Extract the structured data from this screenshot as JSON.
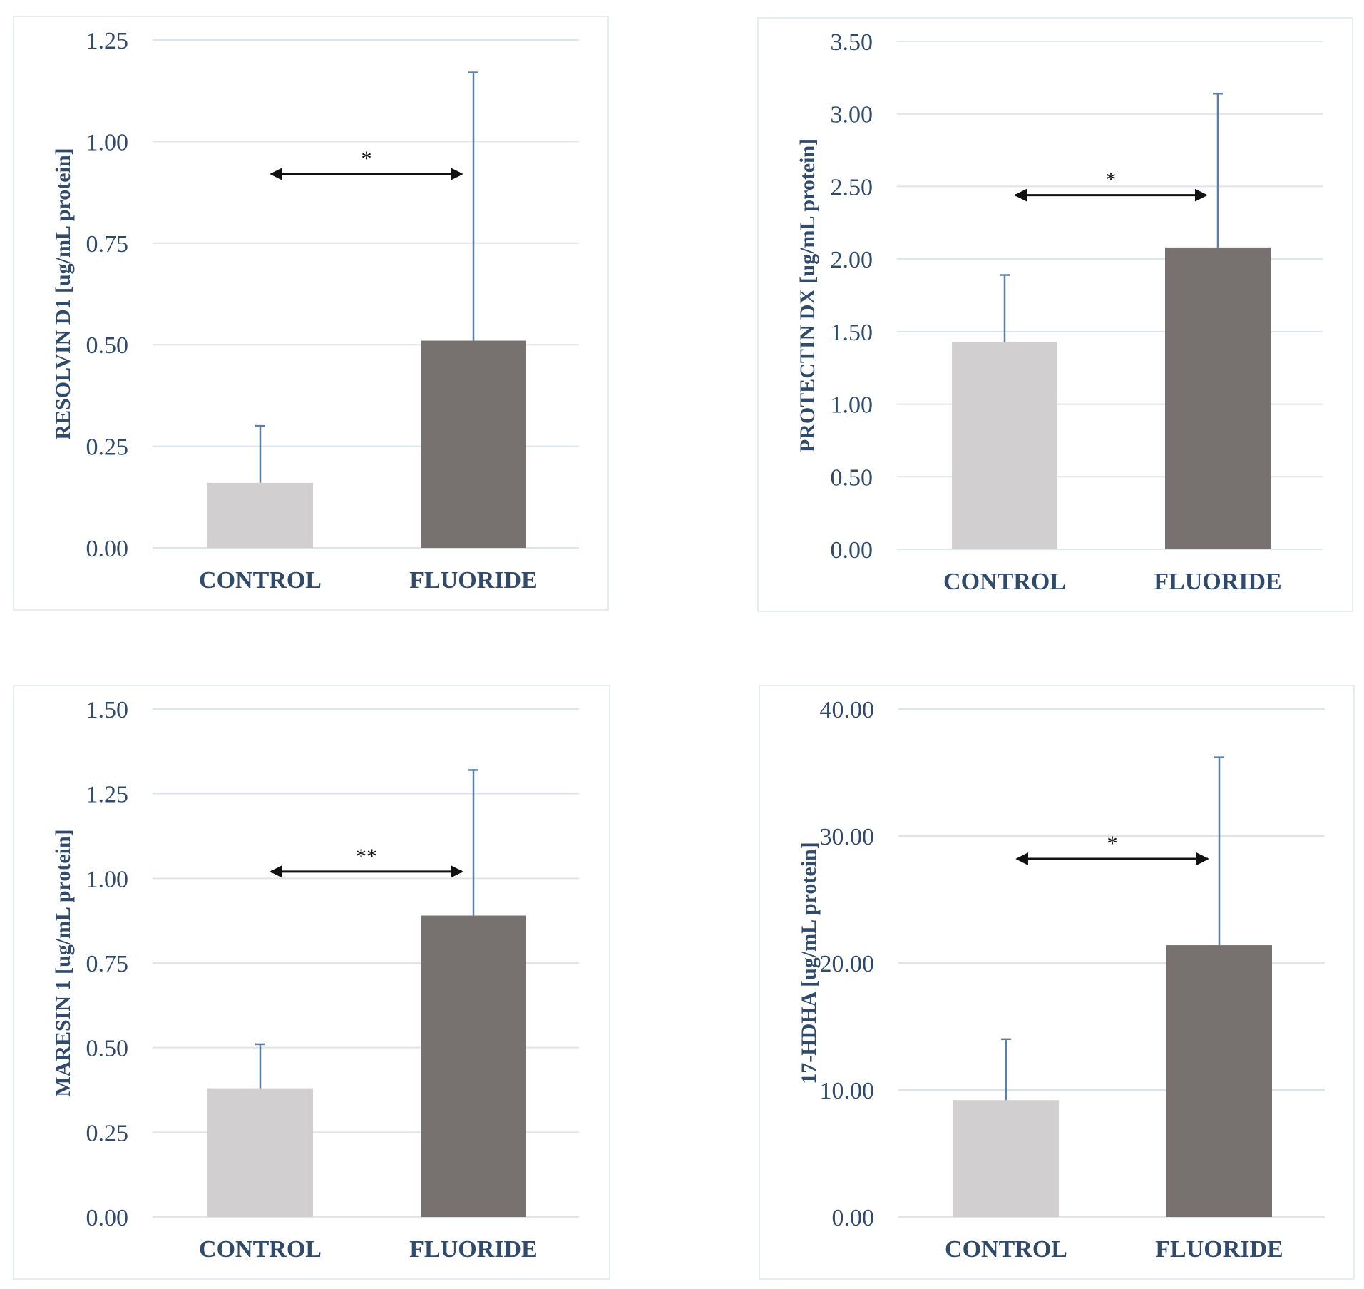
{
  "colors": {
    "control": "#d1cfcf",
    "fluoride": "#77716f",
    "text": "#2f4a6b",
    "error": "#5b7fa6",
    "grid": "#dde4ea"
  },
  "chart_data": [
    {
      "type": "bar",
      "categories": [
        "CONTROL",
        "FLUORIDE"
      ],
      "values": [
        0.16,
        0.51
      ],
      "error_upper": [
        0.3,
        1.17
      ],
      "ylabel": "RESOLVIN D1 [ug/mL protein]",
      "ylim": [
        0,
        1.25
      ],
      "ytick_labels": [
        "0.00",
        "0.25",
        "0.50",
        "0.75",
        "1.00",
        "1.25"
      ],
      "significance": "*"
    },
    {
      "type": "bar",
      "categories": [
        "CONTROL",
        "FLUORIDE"
      ],
      "values": [
        1.43,
        2.08
      ],
      "error_upper": [
        1.89,
        3.14
      ],
      "ylabel": "PROTECTIN DX [ug/mL protein]",
      "ylim": [
        0,
        3.5
      ],
      "ytick_labels": [
        "0.00",
        "0.50",
        "1.00",
        "1.50",
        "2.00",
        "2.50",
        "3.00",
        "3.50"
      ],
      "significance": "*"
    },
    {
      "type": "bar",
      "categories": [
        "CONTROL",
        "FLUORIDE"
      ],
      "values": [
        0.38,
        0.89
      ],
      "error_upper": [
        0.51,
        1.32
      ],
      "ylabel": "MARESIN 1 [ug/mL protein]",
      "ylim": [
        0,
        1.5
      ],
      "ytick_labels": [
        "0.00",
        "0.25",
        "0.50",
        "0.75",
        "1.00",
        "1.25",
        "1.50"
      ],
      "significance": "**"
    },
    {
      "type": "bar",
      "categories": [
        "CONTROL",
        "FLUORIDE"
      ],
      "values": [
        9.2,
        21.4
      ],
      "error_upper": [
        14.0,
        36.2
      ],
      "ylabel": "17-HDHA [ug/mL protein]",
      "ylim": [
        0,
        40
      ],
      "ytick_labels": [
        "0.00",
        "10.00",
        "20.00",
        "30.00",
        "40.00"
      ],
      "significance": "*"
    }
  ]
}
